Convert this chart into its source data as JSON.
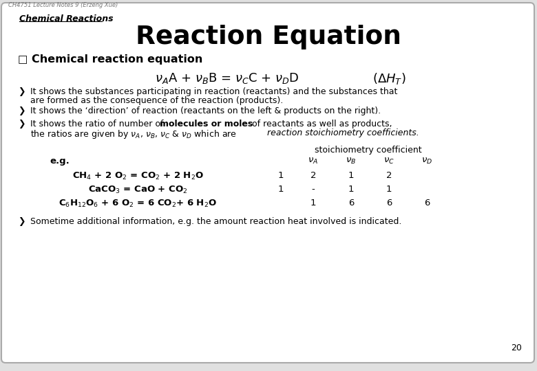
{
  "bg_color": "#e0e0e0",
  "slide_bg": "#ffffff",
  "border_color": "#aaaaaa",
  "header_text": "Chemical Reactions",
  "watermark": "CH4751 Lecture Notes 9 (Erzeng Xue)",
  "title": "Reaction Equation",
  "bullet_header": "Chemical reaction equation",
  "bullet1_line1": "It shows the substances participating in reaction (reactants) and the substances that",
  "bullet1_line2": "are formed as the consequence of the reaction (products).",
  "bullet2": "It shows the ‘direction’ of reaction (reactants on the left & products on the right).",
  "bullet3_line1a": "It shows the ratio of number of ",
  "bullet3_bold": "molecules or moles",
  "bullet3_line1b": " of reactants as well as products,",
  "bullet3_line2_normal": "the ratios are given by ",
  "bullet3_line2_italic": "reaction stoichiometry coefficients.",
  "stoich_header": "stoichiometry coefficient",
  "eg_label": "e.g.",
  "col_va": "$\\nu_A$",
  "col_vb": "$\\nu_B$",
  "col_vc": "$\\nu_C$",
  "col_vd": "$\\nu_D$",
  "row1_eq": "CH$_4$ + 2 O$_2$ = CO$_2$ + 2 H$_2$O",
  "row1_lead": "1",
  "row1_vals": [
    "2",
    "1",
    "2"
  ],
  "row2_eq": "CaCO$_3$ = CaO + CO$_2$",
  "row2_lead": "1",
  "row2_vals": [
    "-",
    "1",
    "1"
  ],
  "row3_eq": "C$_6$H$_{12}$O$_6$ + 6 O$_2$ = 6 CO$_2$+ 6 H$_2$O",
  "row3_vals": [
    "1",
    "6",
    "6",
    "6"
  ],
  "bullet4": "Sometime additional information, e.g. the amount reaction heat involved is indicated.",
  "page_num": "20",
  "text_color": "#000000"
}
